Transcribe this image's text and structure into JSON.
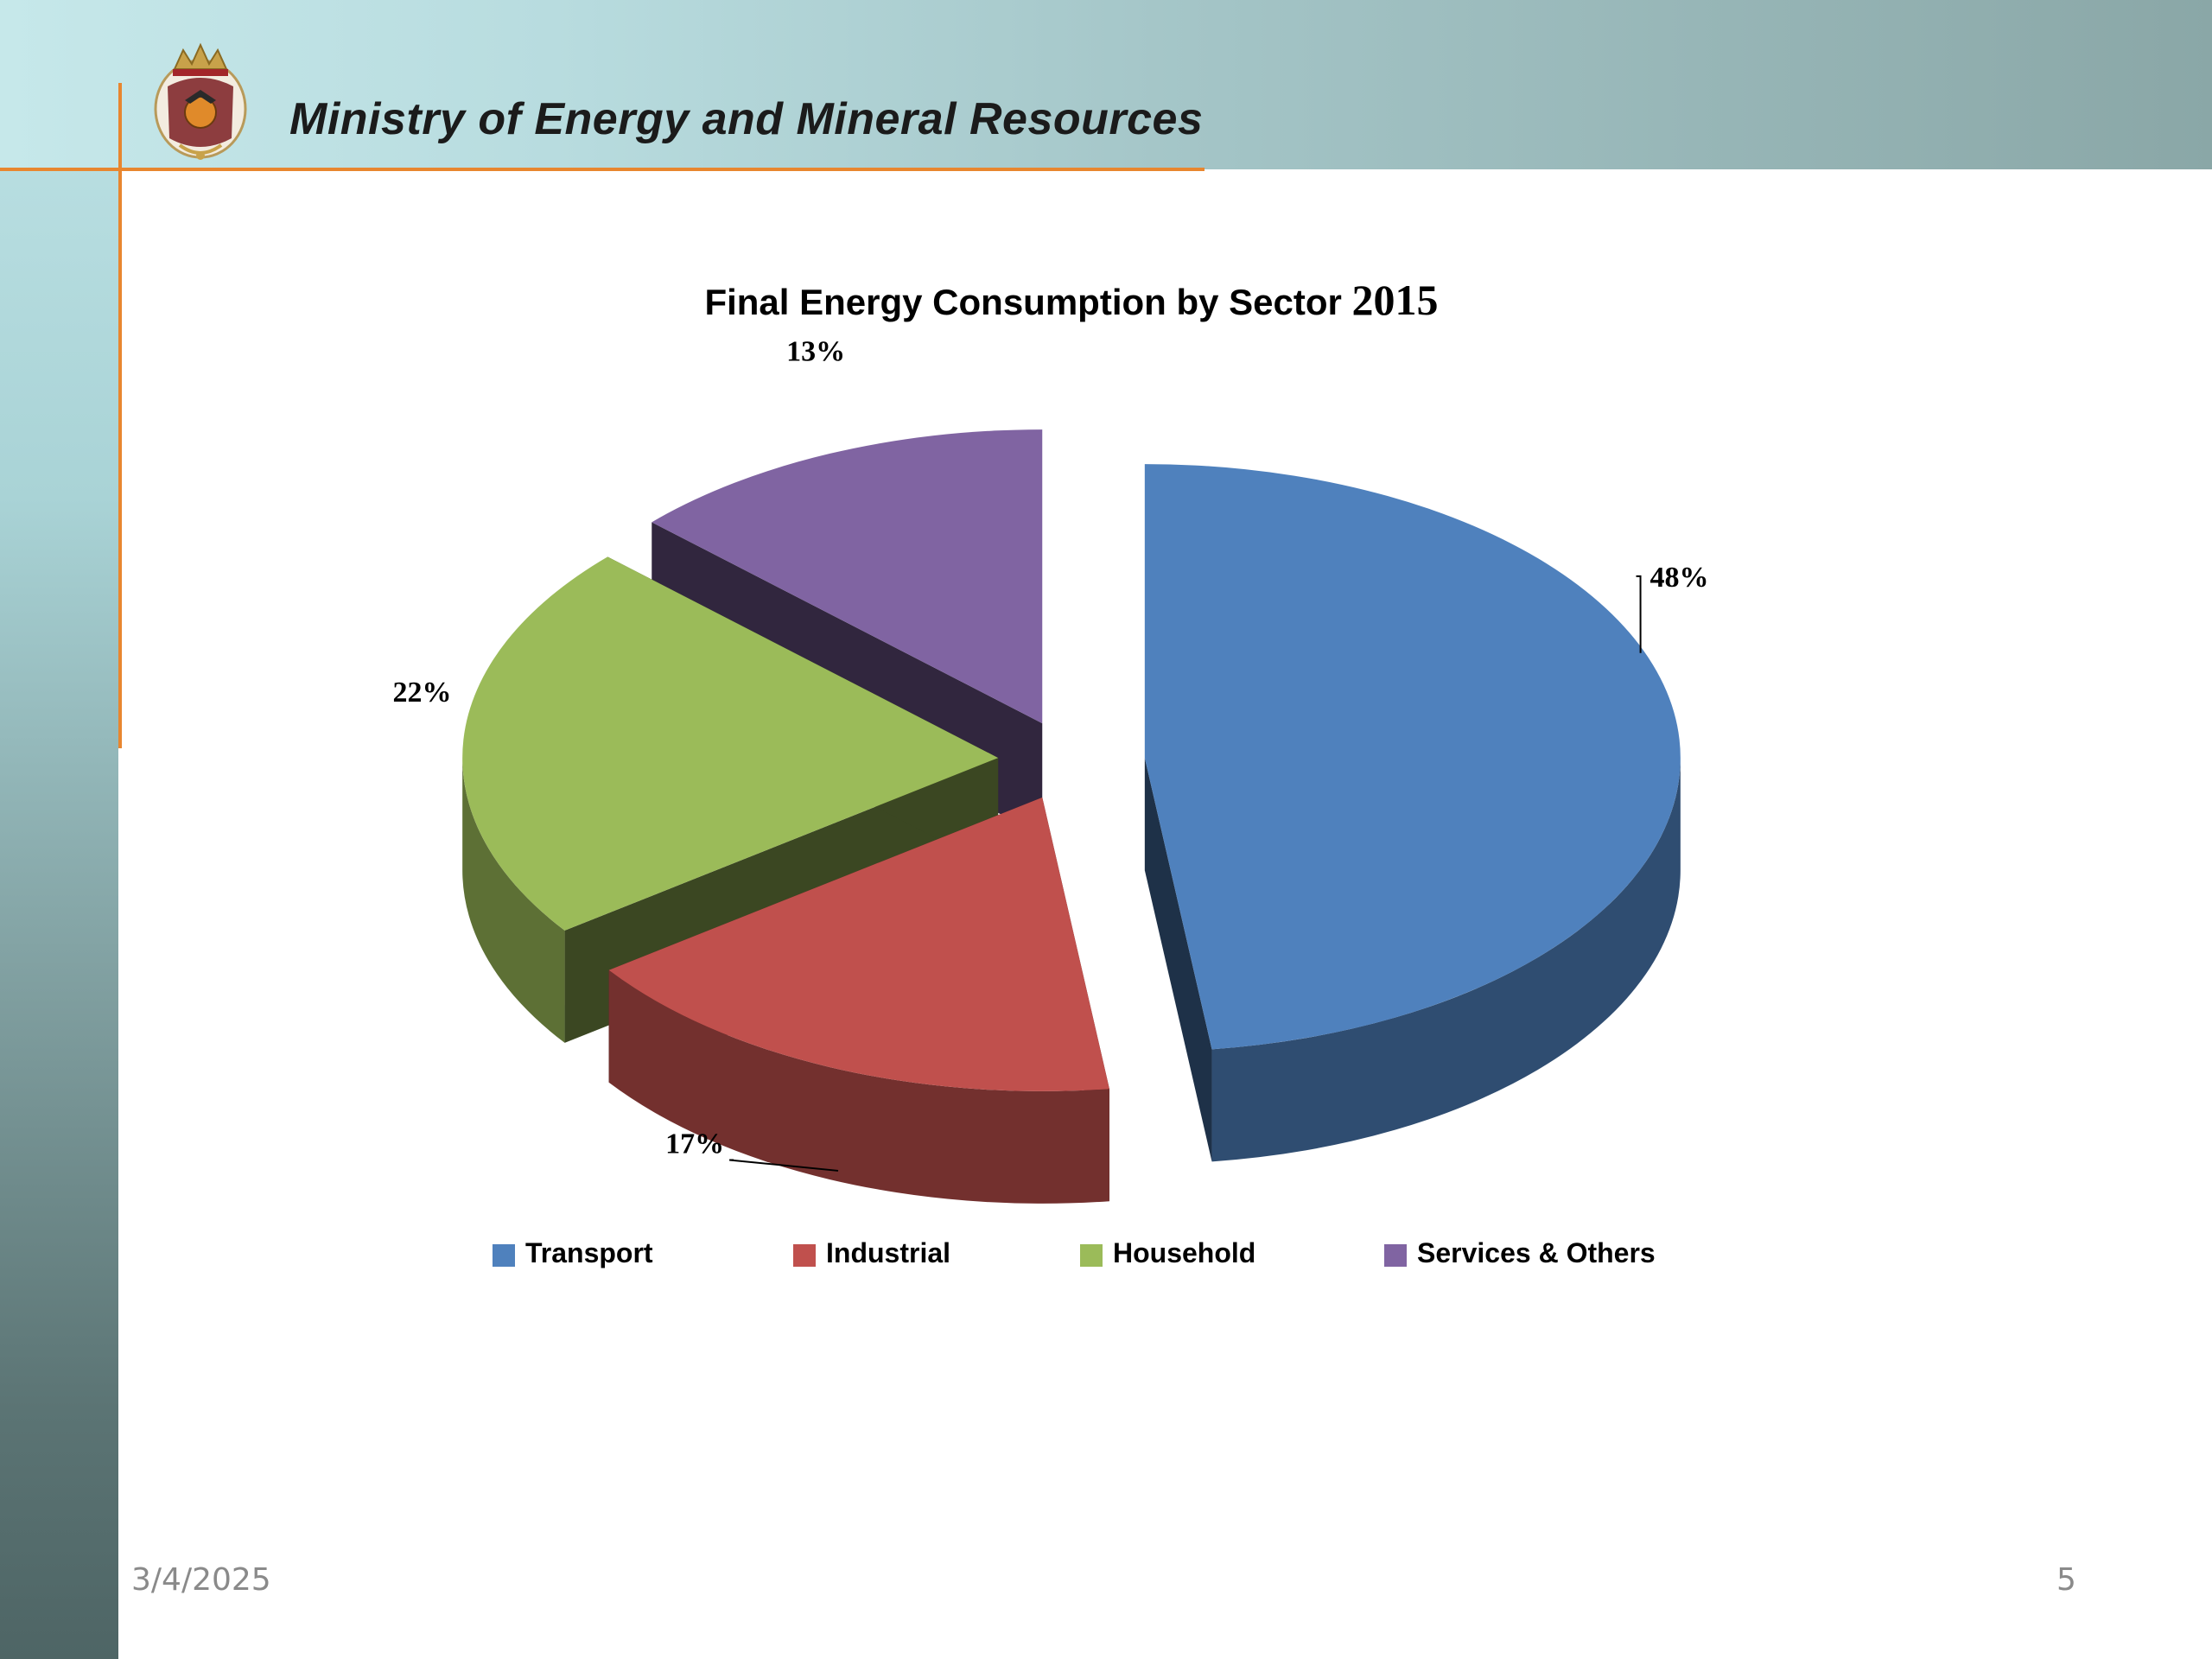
{
  "header": {
    "ministry_name": "Ministry of Energy and Mineral Resources",
    "logo": "jordan-coat-of-arms"
  },
  "chart_data": {
    "type": "pie",
    "title": "Final Energy Consumption by Sector",
    "title_year": "2015",
    "style": "3d-exploded",
    "categories": [
      "Transport",
      "Industrial",
      "Household",
      "Services & Others"
    ],
    "values": [
      48,
      17,
      22,
      13
    ],
    "value_labels": [
      "48%",
      "17%",
      "22%",
      "13%"
    ],
    "unit": "%",
    "colors": [
      "#4f81bd",
      "#c0504d",
      "#9bbb59",
      "#8064a2"
    ],
    "legend_position": "bottom"
  },
  "footer": {
    "date": "3/4/2025",
    "page_number": "5"
  }
}
